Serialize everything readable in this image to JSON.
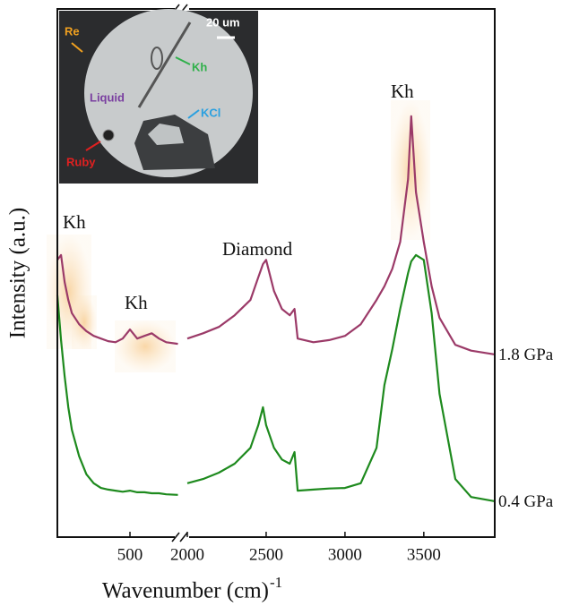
{
  "chart_data": {
    "type": "line",
    "y_label": "Intensity (a.u.)",
    "x_label": "Wavenumber (cm)",
    "x_label_superscript": "-1",
    "x": [
      0,
      25,
      50,
      75,
      100,
      150,
      200,
      250,
      300,
      350,
      400,
      450,
      500,
      550,
      600,
      650,
      700,
      750,
      830,
      2000,
      2100,
      2200,
      2300,
      2400,
      2450,
      2480,
      2500,
      2550,
      2600,
      2650,
      2680,
      2700,
      2800,
      2900,
      3000,
      3100,
      3200,
      3250,
      3300,
      3350,
      3400,
      3420,
      3450,
      3500,
      3550,
      3600,
      3700,
      3800,
      3950
    ],
    "x_segments": [
      {
        "xlim": [
          0,
          830
        ],
        "xticks": [
          500
        ]
      },
      {
        "xlim": [
          2000,
          3950
        ],
        "xticks": [
          2000,
          2500,
          3000,
          3500
        ]
      }
    ],
    "ylim": [
      0,
      100
    ],
    "series": [
      {
        "name": "1.8 GPa",
        "color": "#9b3a68",
        "values": [
          52.5,
          53.4,
          48.3,
          44.9,
          42.4,
          40.3,
          39.0,
          38.1,
          37.6,
          37.1,
          36.9,
          37.6,
          39.3,
          37.6,
          38.1,
          38.6,
          37.6,
          36.9,
          36.6,
          37.6,
          38.6,
          39.8,
          42.0,
          44.9,
          49.2,
          51.7,
          52.5,
          46.6,
          43.2,
          42.0,
          43.2,
          37.6,
          36.9,
          37.3,
          38.1,
          40.3,
          44.9,
          47.5,
          50.8,
          55.9,
          67.8,
          79.7,
          65.3,
          55.9,
          47.5,
          41.5,
          36.4,
          35.3,
          34.6
        ]
      },
      {
        "name": "0.4 GPa",
        "color": "#1e8a1e",
        "values": [
          45.8,
          37.3,
          30.5,
          24.6,
          20.3,
          15.3,
          11.9,
          10.2,
          9.3,
          9.0,
          8.8,
          8.6,
          8.8,
          8.5,
          8.5,
          8.3,
          8.3,
          8.1,
          8.0,
          10.2,
          11.0,
          12.2,
          13.9,
          16.9,
          21.2,
          24.6,
          21.2,
          16.9,
          14.7,
          13.9,
          16.1,
          8.8,
          9.0,
          9.2,
          9.3,
          10.2,
          16.9,
          28.8,
          35.6,
          43.2,
          50.0,
          52.2,
          53.4,
          52.5,
          42.4,
          27.1,
          11.0,
          7.6,
          6.8
        ]
      }
    ],
    "annotations": [
      "Kh",
      "Kh",
      "Diamond",
      "Kh"
    ],
    "inset": {
      "labels": [
        "Re",
        "Kh",
        "Liquid",
        "KCl",
        "Ruby"
      ],
      "scale_bar": "20 um"
    }
  }
}
